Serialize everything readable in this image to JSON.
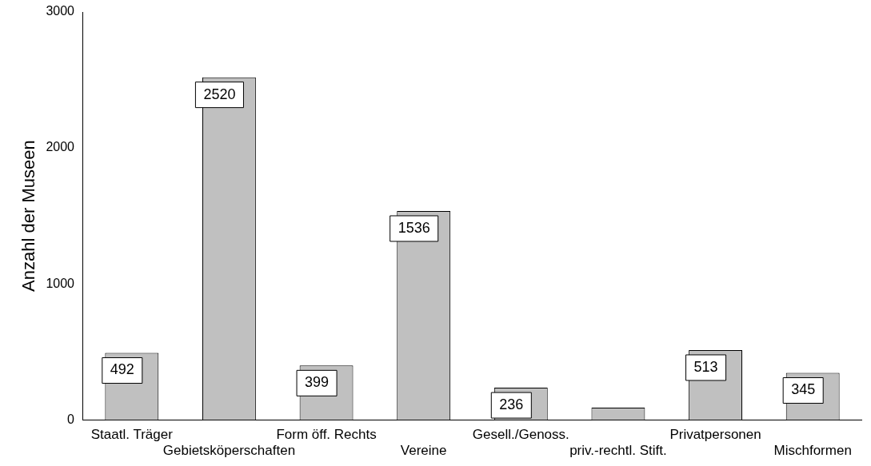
{
  "chart_data": {
    "type": "bar",
    "ylabel": "Anzahl der Museen",
    "categories": [
      "Staatl. Träger",
      "Gebietsköperschaften",
      "Form öff. Rechts",
      "Vereine",
      "Gesell./Genoss.",
      "priv.-rechtl. Stift.",
      "Privatpersonen",
      "Mischformen"
    ],
    "values": [
      492,
      2520,
      399,
      1536,
      236,
      90,
      513,
      345
    ],
    "value_labels": [
      "492",
      "2520",
      "399",
      "1536",
      "236",
      null,
      "513",
      "345"
    ],
    "color": "#c0c0c0",
    "ylim": [
      0,
      3000
    ],
    "yticks": [
      0,
      1000,
      2000,
      3000
    ],
    "grid": false,
    "legend": false
  }
}
